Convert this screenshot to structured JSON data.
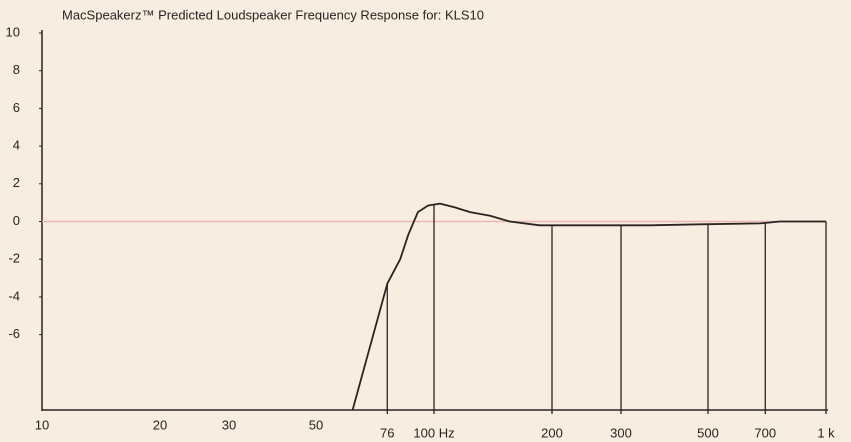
{
  "chart_data": {
    "type": "line",
    "title": "MacSpeakerz™ Predicted Loudspeaker Frequency Response for:  KLS10",
    "xscale": "log",
    "xlim": [
      10,
      1000
    ],
    "ylim": [
      -10,
      10
    ],
    "xticks": [
      10,
      20,
      30,
      50,
      76,
      {
        "value": 100,
        "label": "100 Hz"
      },
      200,
      300,
      500,
      700,
      {
        "value": 1000,
        "label": "1 k"
      }
    ],
    "yticks": [
      10,
      8,
      6,
      4,
      2,
      0,
      -2,
      -4,
      -6
    ],
    "zero_line": true,
    "series": [
      {
        "color": "#2a2522",
        "x": [
          62,
          76,
          82,
          86,
          91,
          96.6,
          103.6,
          113,
          123.6,
          139,
          156,
          186,
          265,
          356,
          477,
          679,
          763,
          1000
        ],
        "values": [
          -10,
          -3.3,
          -2,
          -0.7,
          0.5,
          0.85,
          0.95,
          0.75,
          0.5,
          0.3,
          0,
          -0.2,
          -0.2,
          -0.2,
          -0.15,
          -0.1,
          0,
          0
        ]
      }
    ]
  }
}
